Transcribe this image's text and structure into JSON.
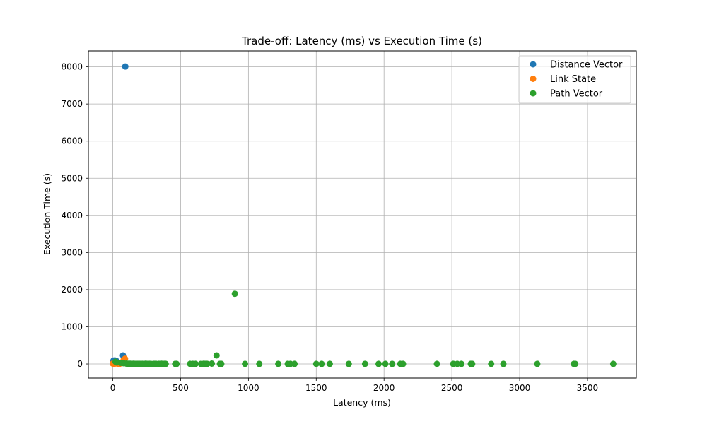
{
  "chart_data": {
    "type": "scatter",
    "title": "Trade-off: Latency (ms) vs Execution Time (s)",
    "xlabel": "Latency (ms)",
    "ylabel": "Execution Time (s)",
    "xlim": [
      -180,
      3860
    ],
    "ylim": [
      -380,
      8430
    ],
    "xticks": [
      0,
      500,
      1000,
      1500,
      2000,
      2500,
      3000,
      3500
    ],
    "yticks": [
      0,
      1000,
      2000,
      3000,
      4000,
      5000,
      6000,
      7000,
      8000
    ],
    "grid": true,
    "legend_position": "top-right",
    "series": [
      {
        "name": "Distance Vector",
        "color": "#1f77b4",
        "points": [
          [
            92,
            8010
          ],
          [
            75,
            230
          ],
          [
            5,
            90
          ],
          [
            15,
            95
          ],
          [
            25,
            85
          ],
          [
            0,
            40
          ],
          [
            10,
            20
          ],
          [
            30,
            30
          ],
          [
            50,
            10
          ],
          [
            40,
            5
          ]
        ]
      },
      {
        "name": "Link State",
        "color": "#ff7f0e",
        "points": [
          [
            90,
            140
          ],
          [
            0,
            10
          ],
          [
            10,
            5
          ],
          [
            20,
            15
          ],
          [
            35,
            8
          ],
          [
            50,
            5
          ],
          [
            60,
            20
          ],
          [
            70,
            25
          ],
          [
            80,
            110
          ]
        ]
      },
      {
        "name": "Path Vector",
        "color": "#2ca02c",
        "points": [
          [
            900,
            1890
          ],
          [
            765,
            230
          ],
          [
            20,
            60
          ],
          [
            30,
            40
          ],
          [
            60,
            30
          ],
          [
            80,
            20
          ],
          [
            100,
            10
          ],
          [
            110,
            5
          ],
          [
            120,
            8
          ],
          [
            130,
            5
          ],
          [
            140,
            3
          ],
          [
            150,
            5
          ],
          [
            160,
            2
          ],
          [
            170,
            4
          ],
          [
            180,
            2
          ],
          [
            190,
            3
          ],
          [
            200,
            4
          ],
          [
            210,
            3
          ],
          [
            220,
            2
          ],
          [
            240,
            5
          ],
          [
            250,
            4
          ],
          [
            260,
            3
          ],
          [
            270,
            2
          ],
          [
            280,
            3
          ],
          [
            300,
            2
          ],
          [
            310,
            4
          ],
          [
            320,
            3
          ],
          [
            340,
            2
          ],
          [
            350,
            3
          ],
          [
            360,
            5
          ],
          [
            370,
            2
          ],
          [
            380,
            3
          ],
          [
            390,
            2
          ],
          [
            460,
            3
          ],
          [
            470,
            2
          ],
          [
            570,
            3
          ],
          [
            590,
            2
          ],
          [
            610,
            3
          ],
          [
            650,
            2
          ],
          [
            670,
            5
          ],
          [
            680,
            3
          ],
          [
            695,
            2
          ],
          [
            730,
            10
          ],
          [
            790,
            3
          ],
          [
            800,
            2
          ],
          [
            975,
            3
          ],
          [
            1080,
            2
          ],
          [
            1220,
            3
          ],
          [
            1290,
            2
          ],
          [
            1310,
            3
          ],
          [
            1340,
            2
          ],
          [
            1500,
            3
          ],
          [
            1540,
            2
          ],
          [
            1600,
            3
          ],
          [
            1740,
            2
          ],
          [
            1860,
            3
          ],
          [
            1960,
            2
          ],
          [
            2010,
            3
          ],
          [
            2060,
            2
          ],
          [
            2120,
            3
          ],
          [
            2140,
            2
          ],
          [
            2390,
            3
          ],
          [
            2510,
            2
          ],
          [
            2540,
            3
          ],
          [
            2570,
            2
          ],
          [
            2640,
            3
          ],
          [
            2650,
            2
          ],
          [
            2790,
            3
          ],
          [
            2880,
            2
          ],
          [
            3130,
            3
          ],
          [
            3400,
            2
          ],
          [
            3410,
            3
          ],
          [
            3690,
            2
          ]
        ]
      }
    ]
  }
}
